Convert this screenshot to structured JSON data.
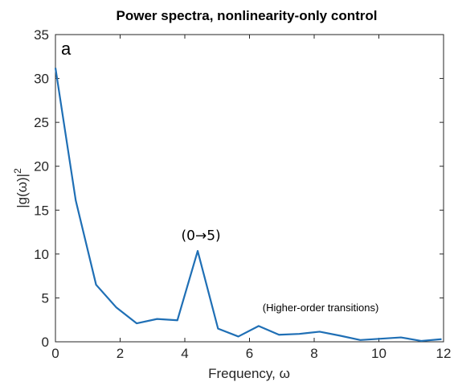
{
  "chart_data": {
    "type": "line",
    "title": "Power spectra, nonlinearity-only control",
    "xlabel": "Frequency, ω",
    "ylabel_main": "|g(ω)|",
    "ylabel_sup": "2",
    "panel_label": "a",
    "xlim": [
      0,
      12
    ],
    "ylim": [
      0,
      35
    ],
    "xticks": [
      0,
      2,
      4,
      6,
      8,
      10,
      12
    ],
    "yticks": [
      0,
      5,
      10,
      15,
      20,
      25,
      30,
      35
    ],
    "grid": false,
    "color": "#1f6fb5",
    "series": [
      {
        "x": [
          0,
          0.628,
          1.257,
          1.885,
          2.513,
          3.142,
          3.77,
          4.398,
          5.027,
          5.655,
          6.283,
          6.912,
          7.54,
          8.168,
          8.796,
          9.425,
          10.053,
          10.681,
          11.31,
          11.938
        ],
        "y": [
          31.2,
          16.1,
          6.5,
          3.9,
          2.1,
          2.6,
          2.45,
          10.35,
          1.5,
          0.6,
          1.8,
          0.8,
          0.9,
          1.15,
          0.7,
          0.2,
          0.35,
          0.5,
          0.1,
          0.3
        ]
      }
    ],
    "annotations": [
      {
        "text": "(0→5)",
        "x": 4.5,
        "y": 11.6,
        "style": "big"
      },
      {
        "text": "(Higher-order transitions)",
        "x": 8.2,
        "y": 3.5,
        "style": "small"
      }
    ]
  }
}
